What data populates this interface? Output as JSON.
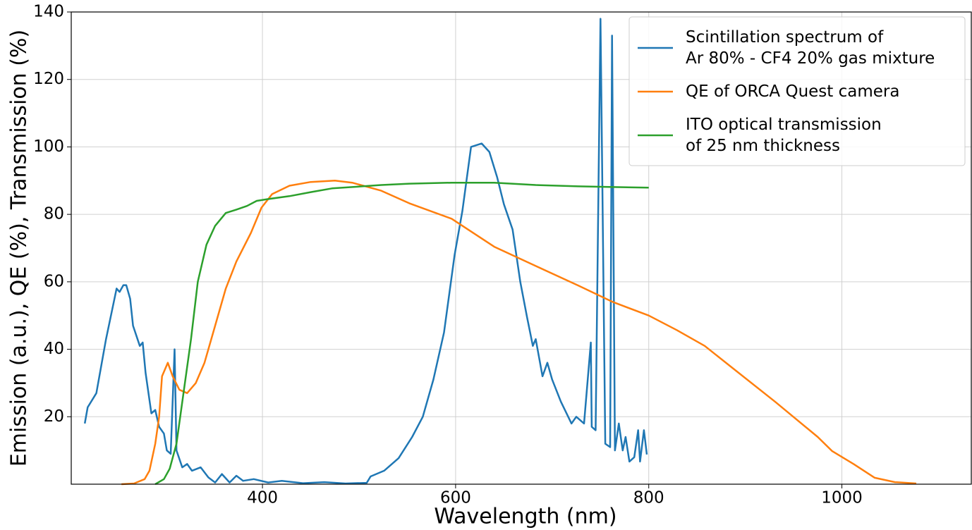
{
  "chart_data": {
    "type": "line",
    "xlabel": "Wavelength (nm)",
    "ylabel": "Emission (a.u.), QE (%), Transmission (%)",
    "xlim": [
      202,
      1134
    ],
    "ylim": [
      0,
      140
    ],
    "xticks": [
      400,
      600,
      800,
      1000
    ],
    "yticks": [
      20,
      40,
      60,
      80,
      100,
      120,
      140
    ],
    "grid": true,
    "legend": "upper right",
    "series": [
      {
        "name": "Scintillation spectrum of\nAr 80% - CF4 20% gas mixture",
        "color": "#1f77b4",
        "x": [
          216,
          219,
          228,
          238,
          249,
          252,
          256,
          259,
          263,
          266,
          273,
          276,
          279,
          285,
          289,
          293,
          298,
          301,
          305,
          309,
          311,
          317,
          322,
          327,
          336,
          344,
          351,
          358,
          366,
          373,
          380,
          391,
          406,
          420,
          442,
          464,
          486,
          508,
          512,
          526,
          541,
          555,
          566,
          577,
          588,
          599,
          607,
          616,
          627,
          635,
          643,
          650,
          659,
          667,
          674,
          680,
          683,
          690,
          695,
          700,
          709,
          720,
          725,
          733,
          740,
          741,
          745,
          750,
          755,
          760,
          762,
          765,
          769,
          773,
          776,
          780,
          785,
          789,
          791,
          795,
          798
        ],
        "values": [
          18,
          22.8,
          27,
          43,
          58,
          57,
          59,
          59,
          55,
          47,
          41,
          42,
          33,
          21,
          22,
          17,
          15,
          10,
          9,
          40,
          10,
          5,
          6,
          4,
          5,
          2,
          0.5,
          3,
          0.5,
          2.5,
          1,
          1.5,
          0.5,
          1,
          0.3,
          0.6,
          0.2,
          0.4,
          2.3,
          4,
          7.7,
          14,
          20,
          31,
          45,
          68,
          81,
          100,
          101,
          98.5,
          91,
          83,
          75.5,
          60,
          49.5,
          41,
          43,
          32,
          36,
          31,
          24.5,
          18,
          20,
          18,
          42,
          17,
          16,
          138,
          12,
          11,
          133,
          10,
          18,
          10,
          14,
          6.7,
          8,
          16,
          6.7,
          16,
          8.8
        ]
      },
      {
        "name": "QE of ORCA Quest camera",
        "color": "#ff7f0e",
        "x": [
          254,
          267,
          278,
          283,
          289,
          293,
          296,
          302,
          307,
          314,
          322,
          331,
          340,
          351,
          362,
          373,
          388,
          399,
          410,
          428,
          450,
          475,
          493,
          523,
          552,
          596,
          640,
          683,
          727,
          763,
          800,
          829,
          858,
          887,
          931,
          975,
          990,
          1012,
          1034,
          1055,
          1077
        ],
        "values": [
          0,
          0.2,
          1.5,
          4,
          12,
          20,
          32,
          36,
          32,
          28,
          27,
          30,
          36,
          47,
          58,
          66,
          74.5,
          82,
          86,
          88.5,
          89.6,
          90,
          89.4,
          87,
          83.3,
          78.7,
          70.4,
          64.7,
          58.9,
          54,
          50,
          45.7,
          41,
          34.4,
          24.4,
          14,
          9.8,
          6,
          1.9,
          0.6,
          0.2
        ]
      },
      {
        "name": "ITO optical transmission\nof 25 nm thickness",
        "color": "#2ca02c",
        "x": [
          289,
          298,
          304,
          311,
          318,
          326,
          333,
          342,
          351,
          362,
          373,
          384,
          394,
          405,
          428,
          450,
          472,
          493,
          523,
          552,
          596,
          640,
          683,
          727,
          763,
          800
        ],
        "values": [
          0,
          1.5,
          4.6,
          12,
          26.5,
          43,
          60,
          71,
          76.6,
          80.4,
          81.4,
          82.5,
          84,
          84.5,
          85.4,
          86.6,
          87.7,
          88.1,
          88.7,
          89.1,
          89.4,
          89.4,
          88.7,
          88.3,
          88.1,
          87.9
        ]
      }
    ]
  }
}
